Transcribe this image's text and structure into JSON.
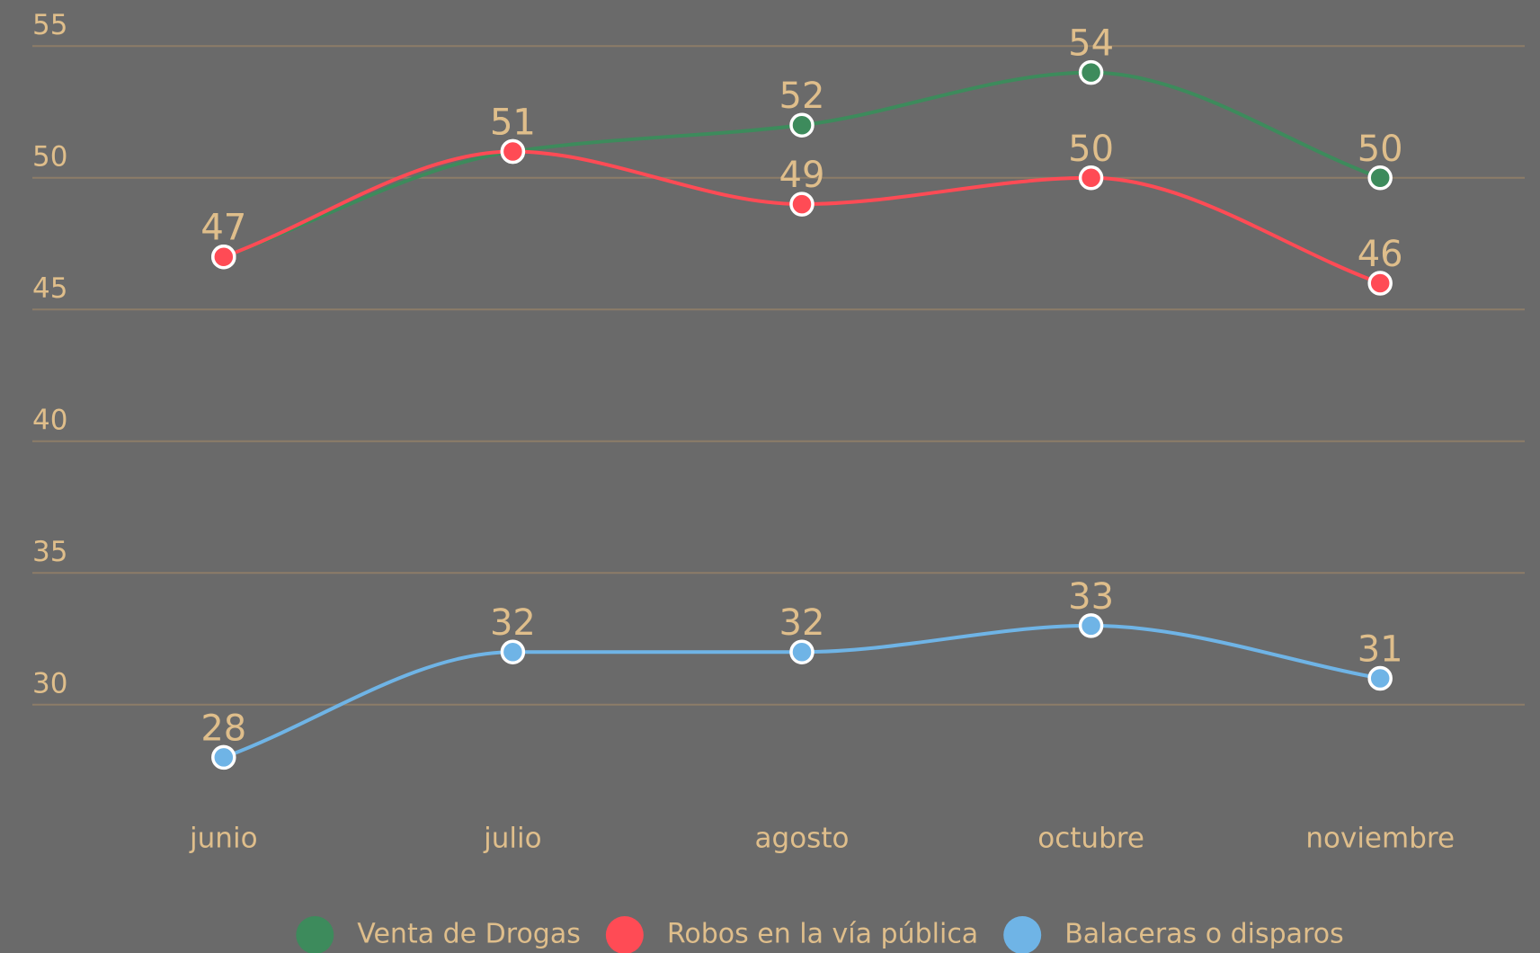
{
  "chart_data": {
    "type": "line",
    "categories": [
      "junio",
      "julio",
      "agosto",
      "octubre",
      "noviembre"
    ],
    "series": [
      {
        "name": "Venta de Drogas",
        "color": "#3d8b5c",
        "values": [
          47,
          51,
          52,
          54,
          50
        ]
      },
      {
        "name": "Robos en la vía pública",
        "color": "#ff4b55",
        "values": [
          47,
          51,
          49,
          50,
          46
        ]
      },
      {
        "name": "Balaceras o disparos",
        "color": "#6fb4e6",
        "values": [
          28,
          32,
          32,
          33,
          31
        ]
      }
    ],
    "ylim": [
      26,
      56
    ],
    "yticks": [
      30,
      35,
      40,
      45,
      50,
      55
    ],
    "grid": true,
    "legend": "bottom"
  }
}
